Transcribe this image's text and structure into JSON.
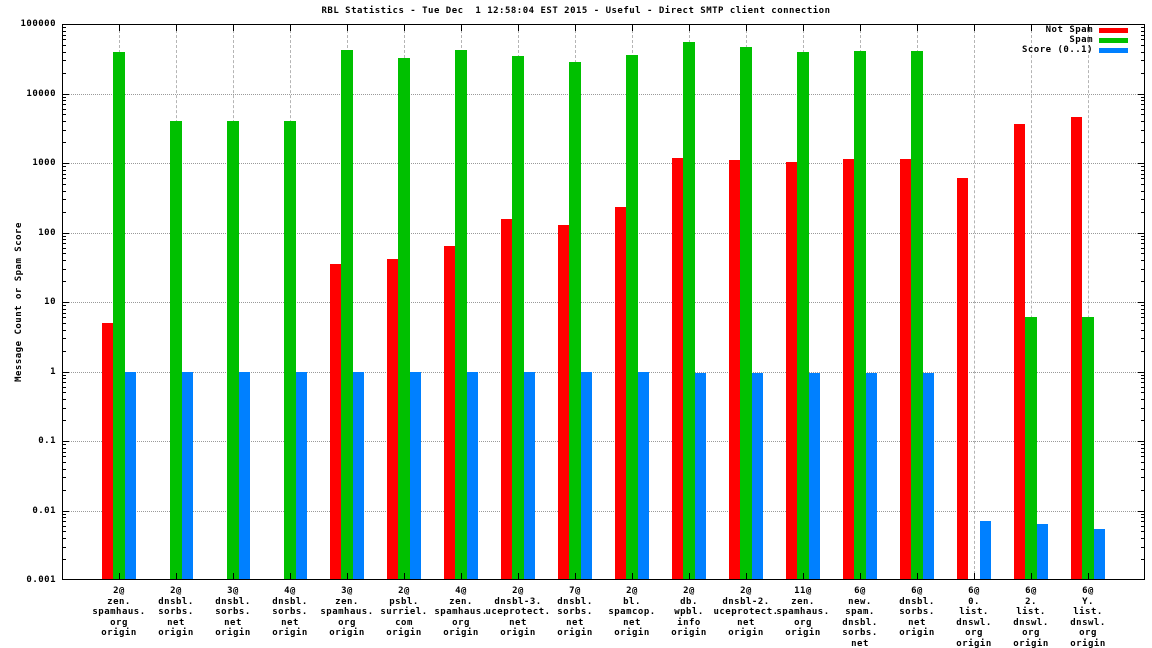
{
  "title": "RBL Statistics - Tue Dec  1 12:58:04 EST 2015 - Useful - Direct SMTP client connection",
  "ylabel": "Message Count or Spam Score",
  "legend": {
    "position": "top-right-inside",
    "items": [
      {
        "label": "Not Spam",
        "color": "#ff0000"
      },
      {
        "label": "Spam",
        "color": "#00c000"
      },
      {
        "label": "Score (0..1)",
        "color": "#0080ff"
      }
    ]
  },
  "colors": {
    "not_spam": "#ff0000",
    "spam": "#00c000",
    "score": "#0080ff",
    "grid": "#9a9a9a",
    "axis": "#000000",
    "background": "#ffffff"
  },
  "chart_data": {
    "type": "bar",
    "title": "RBL Statistics - Tue Dec  1 12:58:04 EST 2015 - Useful - Direct SMTP client connection",
    "xlabel": "",
    "ylabel": "Message Count or Spam Score",
    "yscale": "log",
    "ylim": [
      0.001,
      100000
    ],
    "grid": true,
    "ytick_labels": [
      "100000",
      "10000",
      "1000",
      "100",
      "10",
      "1",
      "0.1",
      "0.01",
      "0.001"
    ],
    "categories": [
      [
        "2@",
        "zen.",
        "spamhaus.",
        "org",
        "origin"
      ],
      [
        "2@",
        "dnsbl.",
        "sorbs.",
        "net",
        "origin"
      ],
      [
        "3@",
        "dnsbl.",
        "sorbs.",
        "net",
        "origin"
      ],
      [
        "4@",
        "dnsbl.",
        "sorbs.",
        "net",
        "origin"
      ],
      [
        "3@",
        "zen.",
        "spamhaus.",
        "org",
        "origin"
      ],
      [
        "2@",
        "psbl.",
        "surriel.",
        "com",
        "origin"
      ],
      [
        "4@",
        "zen.",
        "spamhaus.",
        "org",
        "origin"
      ],
      [
        "2@",
        "dnsbl-3.",
        "uceprotect.",
        "net",
        "origin"
      ],
      [
        "7@",
        "dnsbl.",
        "sorbs.",
        "net",
        "origin"
      ],
      [
        "2@",
        "bl.",
        "spamcop.",
        "net",
        "origin"
      ],
      [
        "2@",
        "db.",
        "wpbl.",
        "info",
        "origin"
      ],
      [
        "2@",
        "dnsbl-2.",
        "uceprotect.",
        "net",
        "origin"
      ],
      [
        "11@",
        "zen.",
        "spamhaus.",
        "org",
        "origin"
      ],
      [
        "6@",
        "new.",
        "spam.",
        "dnsbl.",
        "sorbs.",
        "net",
        "origin"
      ],
      [
        "6@",
        "dnsbl.",
        "sorbs.",
        "net",
        "origin"
      ],
      [
        "6@",
        "0.",
        "list.",
        "dnswl.",
        "org",
        "origin"
      ],
      [
        "6@",
        "2.",
        "list.",
        "dnswl.",
        "org",
        "origin"
      ],
      [
        "6@",
        "Y.",
        "list.",
        "dnswl.",
        "org",
        "origin"
      ]
    ],
    "series": [
      {
        "name": "Not Spam",
        "color": "#ff0000",
        "values": [
          5,
          0,
          0,
          0,
          35,
          42,
          65,
          155,
          130,
          230,
          1200,
          1100,
          1050,
          1150,
          1150,
          600,
          3700,
          4600
        ]
      },
      {
        "name": "Spam",
        "color": "#00c000",
        "values": [
          40000,
          4000,
          4000,
          4000,
          42000,
          33000,
          42000,
          35000,
          28000,
          36000,
          55000,
          46000,
          40000,
          41000,
          41000,
          0,
          6,
          6
        ]
      },
      {
        "name": "Score (0..1)",
        "color": "#0080ff",
        "values": [
          1,
          1,
          1,
          1,
          1,
          1,
          1,
          1,
          1,
          1,
          0.95,
          0.95,
          0.95,
          0.95,
          0.95,
          0.007,
          0.0065,
          0.0055
        ]
      }
    ]
  }
}
